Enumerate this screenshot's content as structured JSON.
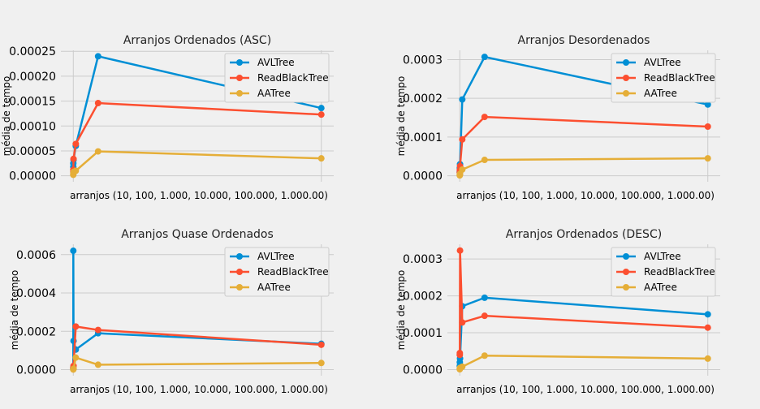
{
  "figure": {
    "background": "#f0f0f0",
    "series_colors": {
      "AVLTree": "#008fd5",
      "ReadBlackTree": "#fc4f30",
      "AATree": "#e5ae38"
    }
  },
  "chart_data": [
    {
      "type": "line",
      "title": "Arranjos Ordenados (ASC)",
      "xlabel": "arranjos (10, 100, 1.000, 10.000, 100.000, 1.000.00)",
      "ylabel": "média de tempo",
      "x": [
        10,
        100,
        1000,
        10000,
        100000,
        1000000
      ],
      "xlim": [
        -49990,
        1049990
      ],
      "ylim": [
        -1.2e-05,
        0.000252
      ],
      "yticks": [
        0,
        5e-05,
        0.0001,
        0.00015,
        0.0002,
        0.00025
      ],
      "ytick_labels": [
        "0.00000",
        "0.00005",
        "0.00010",
        "0.00015",
        "0.00020",
        "0.00025"
      ],
      "grid": true,
      "legend_position": "upper right",
      "series": [
        {
          "name": "AVLTree",
          "color": "#008fd5",
          "values": [
            1.8e-05,
            2.5e-05,
            3.2e-05,
            6e-05,
            0.00024,
            0.000136
          ]
        },
        {
          "name": "ReadBlackTree",
          "color": "#fc4f30",
          "values": [
            8e-06,
            1.2e-05,
            3.4e-05,
            6.4e-05,
            0.000146,
            0.000123
          ]
        },
        {
          "name": "AATree",
          "color": "#e5ae38",
          "values": [
            2e-06,
            4e-06,
            8e-06,
            1e-05,
            4.9e-05,
            3.5e-05
          ]
        }
      ]
    },
    {
      "type": "line",
      "title": "Arranjos Desordenados",
      "xlabel": "arranjos (10, 100, 1.000, 10.000, 100.000, 1.000.00)",
      "ylabel": "média de tempo",
      "x": [
        10,
        100,
        1000,
        10000,
        100000,
        1000000
      ],
      "xlim": [
        -49990,
        1049990
      ],
      "ylim": [
        -1.55e-05,
        0.000324
      ],
      "yticks": [
        0,
        0.0001,
        0.0002,
        0.0003
      ],
      "ytick_labels": [
        "0.0000",
        "0.0001",
        "0.0002",
        "0.0003"
      ],
      "grid": true,
      "legend_position": "upper right",
      "series": [
        {
          "name": "AVLTree",
          "color": "#008fd5",
          "values": [
            1e-05,
            2e-05,
            3e-05,
            0.000197,
            0.000307,
            0.000184
          ]
        },
        {
          "name": "ReadBlackTree",
          "color": "#fc4f30",
          "values": [
            8e-06,
            1.5e-05,
            2.5e-05,
            9.4e-05,
            0.000152,
            0.000127
          ]
        },
        {
          "name": "AATree",
          "color": "#e5ae38",
          "values": [
            1e-06,
            3e-06,
            5e-06,
            1.6e-05,
            4.1e-05,
            4.5e-05
          ]
        }
      ]
    },
    {
      "type": "line",
      "title": "Arranjos Quase Ordenados",
      "xlabel": "arranjos (10, 100, 1.000, 10.000, 100.000, 1.000.00)",
      "ylabel": "média de tempo",
      "x": [
        10,
        100,
        1000,
        10000,
        100000,
        1000000
      ],
      "xlim": [
        -49990,
        1049990
      ],
      "ylim": [
        -3.15e-05,
        0.000654
      ],
      "yticks": [
        0,
        0.0002,
        0.0004,
        0.0006
      ],
      "ytick_labels": [
        "0.0000",
        "0.0002",
        "0.0004",
        "0.0006"
      ],
      "grid": true,
      "legend_position": "upper right",
      "series": [
        {
          "name": "AVLTree",
          "color": "#008fd5",
          "values": [
            1e-05,
            0.00062,
            0.00015,
            0.000105,
            0.00019,
            0.000135
          ]
        },
        {
          "name": "ReadBlackTree",
          "color": "#fc4f30",
          "values": [
            8e-06,
            1e-05,
            2e-05,
            0.000225,
            0.000207,
            0.00013
          ]
        },
        {
          "name": "AATree",
          "color": "#e5ae38",
          "values": [
            1e-06,
            3e-06,
            5e-06,
            6.3e-05,
            2.6e-05,
            3.5e-05
          ]
        }
      ]
    },
    {
      "type": "line",
      "title": "Arranjos Ordenados (DESC)",
      "xlabel": "arranjos (10, 100, 1.000, 10.000, 100.000, 1.000.00)",
      "ylabel": "média de tempo",
      "x": [
        10,
        100,
        1000,
        10000,
        100000,
        1000000
      ],
      "xlim": [
        -49990,
        1049990
      ],
      "ylim": [
        -1.65e-05,
        0.00034
      ],
      "yticks": [
        0,
        0.0001,
        0.0002,
        0.0003
      ],
      "ytick_labels": [
        "0.0000",
        "0.0001",
        "0.0002",
        "0.0003"
      ],
      "grid": true,
      "legend_position": "upper right",
      "series": [
        {
          "name": "AVLTree",
          "color": "#008fd5",
          "values": [
            1e-05,
            2e-05,
            3e-05,
            0.000172,
            0.000195,
            0.00015
          ]
        },
        {
          "name": "ReadBlackTree",
          "color": "#fc4f30",
          "values": [
            4e-05,
            4.5e-05,
            0.000323,
            0.000128,
            0.000146,
            0.000114
          ]
        },
        {
          "name": "AATree",
          "color": "#e5ae38",
          "values": [
            1e-06,
            3e-06,
            5e-06,
            8e-06,
            3.8e-05,
            3e-05
          ]
        }
      ]
    }
  ]
}
